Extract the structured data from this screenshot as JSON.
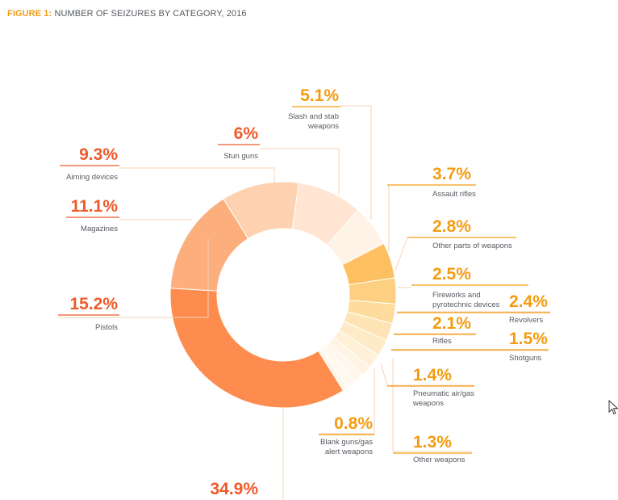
{
  "figure": {
    "prefix": "FIGURE 1:",
    "title": "NUMBER OF SEIZURES BY CATEGORY, 2016"
  },
  "colors": {
    "red_label": "#ef5a2a",
    "orange_label": "#f39c12",
    "text_grey": "#555a60"
  },
  "chart_data": {
    "type": "pie",
    "donut": true,
    "title": "NUMBER OF SEIZURES BY CATEGORY, 2016",
    "unit": "%",
    "slices": [
      {
        "label": "Slash and stab weapons",
        "value": 5.1,
        "display": "5.1%",
        "color": "#fdc060"
      },
      {
        "label": "Assault rifles",
        "value": 3.7,
        "display": "3.7%",
        "color": "#fdcf80"
      },
      {
        "label": "Other parts of weapons",
        "value": 2.8,
        "display": "2.8%",
        "color": "#fedc9e"
      },
      {
        "label": "Fireworks and pyrotechnic devices",
        "value": 2.5,
        "display": "2.5%",
        "color": "#fee4b4"
      },
      {
        "label": "Revolvers",
        "value": 2.4,
        "display": "2.4%",
        "color": "#feeac6"
      },
      {
        "label": "Rifles",
        "value": 2.1,
        "display": "2.1%",
        "color": "#fff0d8"
      },
      {
        "label": "Shotguns",
        "value": 1.5,
        "display": "1.5%",
        "color": "#fff4e4"
      },
      {
        "label": "Pneumatic air/gas weapons",
        "value": 1.4,
        "display": "1.4%",
        "color": "#fff7ec"
      },
      {
        "label": "Other weapons",
        "value": 1.3,
        "display": "1.3%",
        "color": "#fff8ee"
      },
      {
        "label": "Blank guns/gas alert weapons",
        "value": 0.8,
        "display": "0.8%",
        "color": "#fff6ea"
      },
      {
        "label": "",
        "value": 34.9,
        "display": "34.9%",
        "color": "#fe8c4e"
      },
      {
        "label": "Pistols",
        "value": 15.2,
        "display": "15.2%",
        "color": "#fdae7d"
      },
      {
        "label": "Magazines",
        "value": 11.1,
        "display": "11.1%",
        "color": "#fed2b0"
      },
      {
        "label": "Aiming devices",
        "value": 9.3,
        "display": "9.3%",
        "color": "#ffe5d2"
      },
      {
        "label": "Stun guns",
        "value": 6.0,
        "display": "6%",
        "color": "#fff2e6"
      }
    ]
  }
}
